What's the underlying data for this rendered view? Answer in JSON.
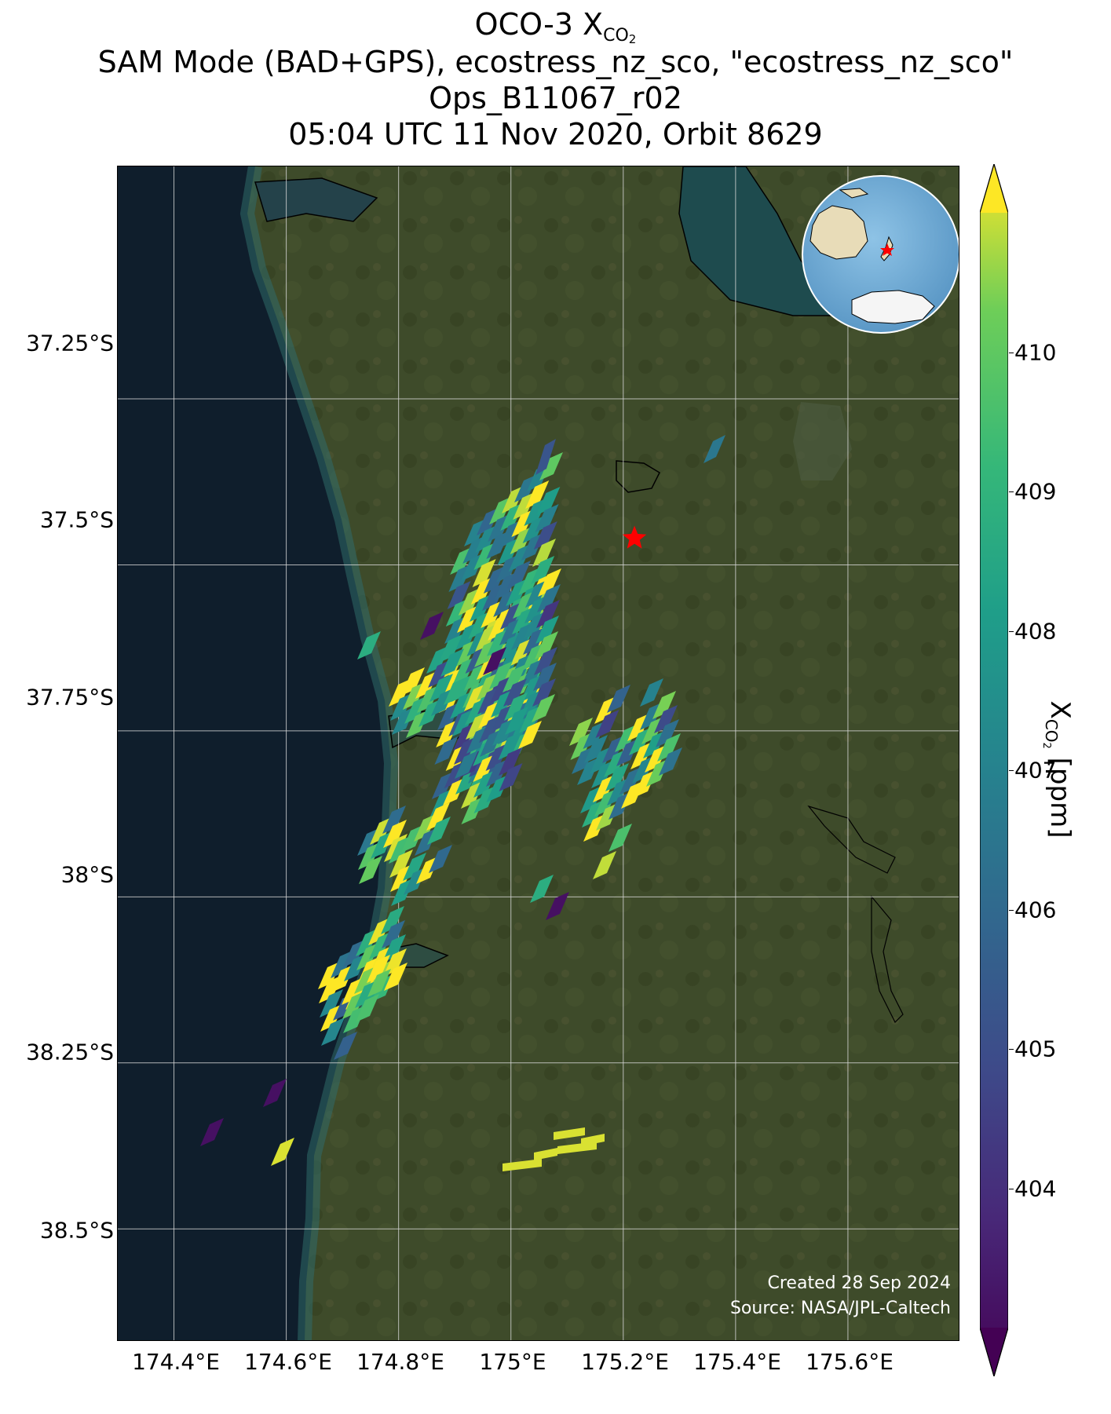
{
  "title": {
    "line1_prefix": "OCO-3 X",
    "line1_sub": "CO",
    "line1_sub2": "2",
    "line2": "SAM Mode (BAD+GPS), ecostress_nz_sco, \"ecostress_nz_sco\"",
    "line3": "Ops_B11067_r02",
    "line4": "05:04 UTC 11 Nov 2020, Orbit 8629"
  },
  "map": {
    "lon_range": [
      174.3,
      175.8
    ],
    "lat_range": [
      -38.67,
      -36.9
    ],
    "lat_ticks": [
      {
        "value": -37.25,
        "label": "37.25°S"
      },
      {
        "value": -37.5,
        "label": "37.5°S"
      },
      {
        "value": -37.75,
        "label": "37.75°S"
      },
      {
        "value": -38.0,
        "label": "38°S"
      },
      {
        "value": -38.25,
        "label": "38.25°S"
      },
      {
        "value": -38.5,
        "label": "38.5°S"
      }
    ],
    "lon_ticks": [
      {
        "value": 174.4,
        "label": "174.4°E"
      },
      {
        "value": 174.6,
        "label": "174.6°E"
      },
      {
        "value": 174.8,
        "label": "174.8°E"
      },
      {
        "value": 175.0,
        "label": "175°E"
      },
      {
        "value": 175.2,
        "label": "175.2°E"
      },
      {
        "value": 175.4,
        "label": "175.4°E"
      },
      {
        "value": 175.6,
        "label": "175.6°E"
      }
    ],
    "target": {
      "lon": 175.22,
      "lat": -37.46,
      "marker": "red-star-icon"
    },
    "credit_line1": "Created 28 Sep 2024",
    "credit_line2": "Source: NASA/JPL-Caltech",
    "colors": {
      "ocean": "#0f1e2c",
      "land": "#3d4a2a",
      "target": "#ff0000",
      "grid": "#d9d9d9"
    }
  },
  "colorbar": {
    "min": 403.0,
    "max": 411.0,
    "extend": "both",
    "ticks": [
      404,
      405,
      406,
      407,
      408,
      409,
      410
    ],
    "tick_labels": [
      "404",
      "405",
      "406",
      "407",
      "408",
      "409",
      "410"
    ],
    "label_prefix": "X",
    "label_sub": "CO",
    "label_sub2": "2",
    "label_suffix": " [ppm]",
    "colormap": "viridis"
  }
}
